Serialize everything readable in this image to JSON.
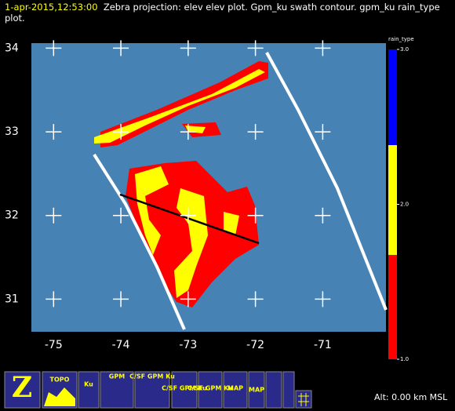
{
  "header": {
    "timestamp": "1-apr-2015,12:53:00",
    "description": "Zebra projection: elev elev  plot.  Gpm_ku swath contour.  gpm_ku rain_type plot."
  },
  "map": {
    "xlim": [
      -75.33,
      -70.06
    ],
    "ylim": [
      30.61,
      34.06
    ],
    "xticks": [
      -75,
      -74,
      -73,
      -72,
      -71
    ],
    "yticks": [
      34,
      33,
      32,
      31
    ]
  },
  "colorbar": {
    "title": "rain_type",
    "lim": [
      1,
      3
    ],
    "ticks": [
      {
        "value": 3,
        "label": "3.0"
      },
      {
        "value": 2,
        "label": "2.0"
      },
      {
        "value": 1,
        "label": "1.0"
      }
    ]
  },
  "toolbar": {
    "buttons": [
      "TOPO",
      "Ku",
      "GPM",
      "C/SF GPM Ku",
      "C/SF GPM Ku",
      "C/SF GPM Ku",
      "MAP",
      "MAP"
    ]
  },
  "status": {
    "altitude": "Alt: 0.00 km MSL"
  }
}
